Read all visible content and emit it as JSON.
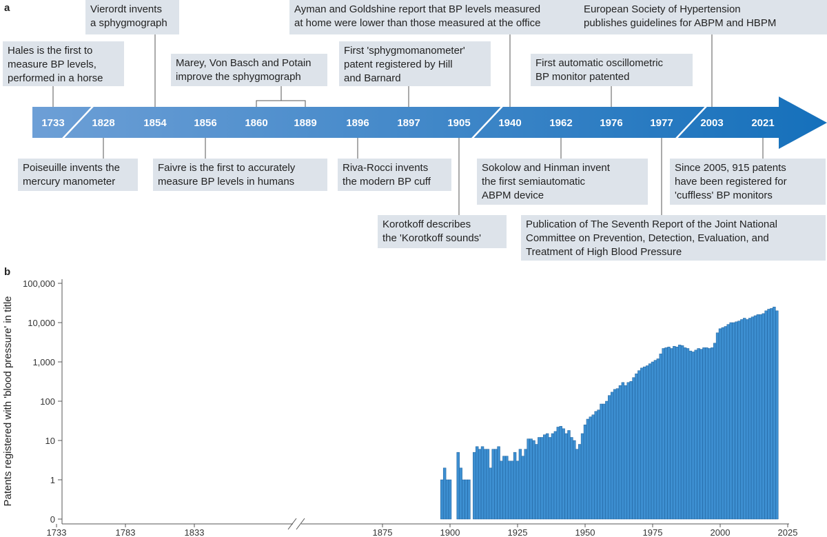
{
  "timeline": {
    "panel_label": "a",
    "years": [
      "1733",
      "1828",
      "1854",
      "1856",
      "1860",
      "1889",
      "1896",
      "1897",
      "1905",
      "1940",
      "1962",
      "1976",
      "1977",
      "2003",
      "2021"
    ],
    "events": [
      {
        "lines": [
          "Hales is the first to",
          "measure BP levels,",
          "performed in a horse"
        ]
      },
      {
        "lines": [
          "Vierordt invents",
          "a sphygmograph"
        ]
      },
      {
        "lines": [
          "Marey, Von Basch and Potain",
          "improve the sphygmograph"
        ]
      },
      {
        "lines": [
          "Ayman and Goldshine report that BP levels measured",
          "at home were lower than those measured at the office"
        ]
      },
      {
        "lines": [
          "First 'sphygmomanometer'",
          "patent registered by Hill",
          "and Barnard"
        ]
      },
      {
        "lines": [
          "European Society of Hypertension",
          "publishes guidelines for ABPM and HBPM"
        ]
      },
      {
        "lines": [
          "First automatic oscillometric",
          "BP monitor patented"
        ]
      },
      {
        "lines": [
          "Poiseuille invents the",
          "mercury manometer"
        ]
      },
      {
        "lines": [
          "Faivre is the first to accurately",
          "measure BP levels in humans"
        ]
      },
      {
        "lines": [
          "Riva-Rocci invents",
          "the modern BP cuff"
        ]
      },
      {
        "lines": [
          "Sokolow and Hinman invent",
          "the first semiautomatic",
          "ABPM device"
        ]
      },
      {
        "lines": [
          "Since 2005, 915 patents",
          "have been registered for",
          "'cuffless' BP monitors"
        ]
      },
      {
        "lines": [
          "Korotkoff describes",
          "the 'Korotkoff sounds'"
        ]
      },
      {
        "lines": [
          "Publication of The Seventh Report of the Joint National",
          "Committee on Prevention, Detection, Evaluation, and",
          "Treatment of High Blood Pressure"
        ]
      }
    ]
  },
  "chart_data": {
    "type": "bar",
    "panel_label": "b",
    "log": true,
    "color": "#3d8fd1",
    "ylabel": "Patents registered with 'blood pressure' in title",
    "xlim": [
      1733,
      2025
    ],
    "xticks": [
      1733,
      1783,
      1833,
      1875,
      1900,
      1925,
      1950,
      1975,
      2000,
      2025
    ],
    "ylim": [
      0,
      100000
    ],
    "yticks": [
      0,
      1,
      10,
      100,
      {
        "value": 1000,
        "label": "1,000"
      },
      {
        "value": 10000,
        "label": "10,000"
      },
      {
        "value": 100000,
        "label": "100,000"
      }
    ],
    "x": [
      1897,
      1898,
      1899,
      1900,
      1901,
      1902,
      1903,
      1904,
      1905,
      1906,
      1907,
      1908,
      1909,
      1910,
      1911,
      1912,
      1913,
      1914,
      1915,
      1916,
      1917,
      1918,
      1919,
      1920,
      1921,
      1922,
      1923,
      1924,
      1925,
      1926,
      1927,
      1928,
      1929,
      1930,
      1931,
      1932,
      1933,
      1934,
      1935,
      1936,
      1937,
      1938,
      1939,
      1940,
      1941,
      1942,
      1943,
      1944,
      1945,
      1946,
      1947,
      1948,
      1949,
      1950,
      1951,
      1952,
      1953,
      1954,
      1955,
      1956,
      1957,
      1958,
      1959,
      1960,
      1961,
      1962,
      1963,
      1964,
      1965,
      1966,
      1967,
      1968,
      1969,
      1970,
      1971,
      1972,
      1973,
      1974,
      1975,
      1976,
      1977,
      1978,
      1979,
      1980,
      1981,
      1982,
      1983,
      1984,
      1985,
      1986,
      1987,
      1988,
      1989,
      1990,
      1991,
      1992,
      1993,
      1994,
      1995,
      1996,
      1997,
      1998,
      1999,
      2000,
      2001,
      2002,
      2003,
      2004,
      2005,
      2006,
      2007,
      2008,
      2009,
      2010,
      2011,
      2012,
      2013,
      2014,
      2015,
      2016,
      2017,
      2018,
      2019,
      2020,
      2021
    ],
    "values": [
      1,
      2,
      1,
      1,
      0,
      0,
      5,
      2,
      1,
      1,
      1,
      0,
      5,
      7,
      6,
      7,
      6,
      6,
      2,
      6,
      6,
      7,
      3,
      4,
      4,
      3,
      3,
      5,
      3,
      6,
      4,
      6,
      11,
      11,
      10,
      8,
      12,
      12,
      14,
      15,
      12,
      15,
      17,
      22,
      23,
      20,
      15,
      18,
      12,
      10,
      6,
      8,
      15,
      25,
      35,
      40,
      45,
      55,
      60,
      85,
      85,
      100,
      140,
      170,
      200,
      210,
      250,
      300,
      250,
      300,
      320,
      400,
      500,
      600,
      700,
      750,
      800,
      900,
      1000,
      1100,
      1200,
      1600,
      2200,
      2300,
      2400,
      2200,
      2500,
      2400,
      2700,
      2600,
      2300,
      2200,
      1900,
      1800,
      2000,
      2200,
      2100,
      2300,
      2300,
      2200,
      2300,
      3000,
      5500,
      7000,
      7500,
      8000,
      9000,
      10000,
      10000,
      10500,
      11000,
      12000,
      13000,
      12000,
      13000,
      14000,
      15000,
      16000,
      16000,
      17000,
      20000,
      22000,
      23000,
      25000,
      20000
    ]
  }
}
